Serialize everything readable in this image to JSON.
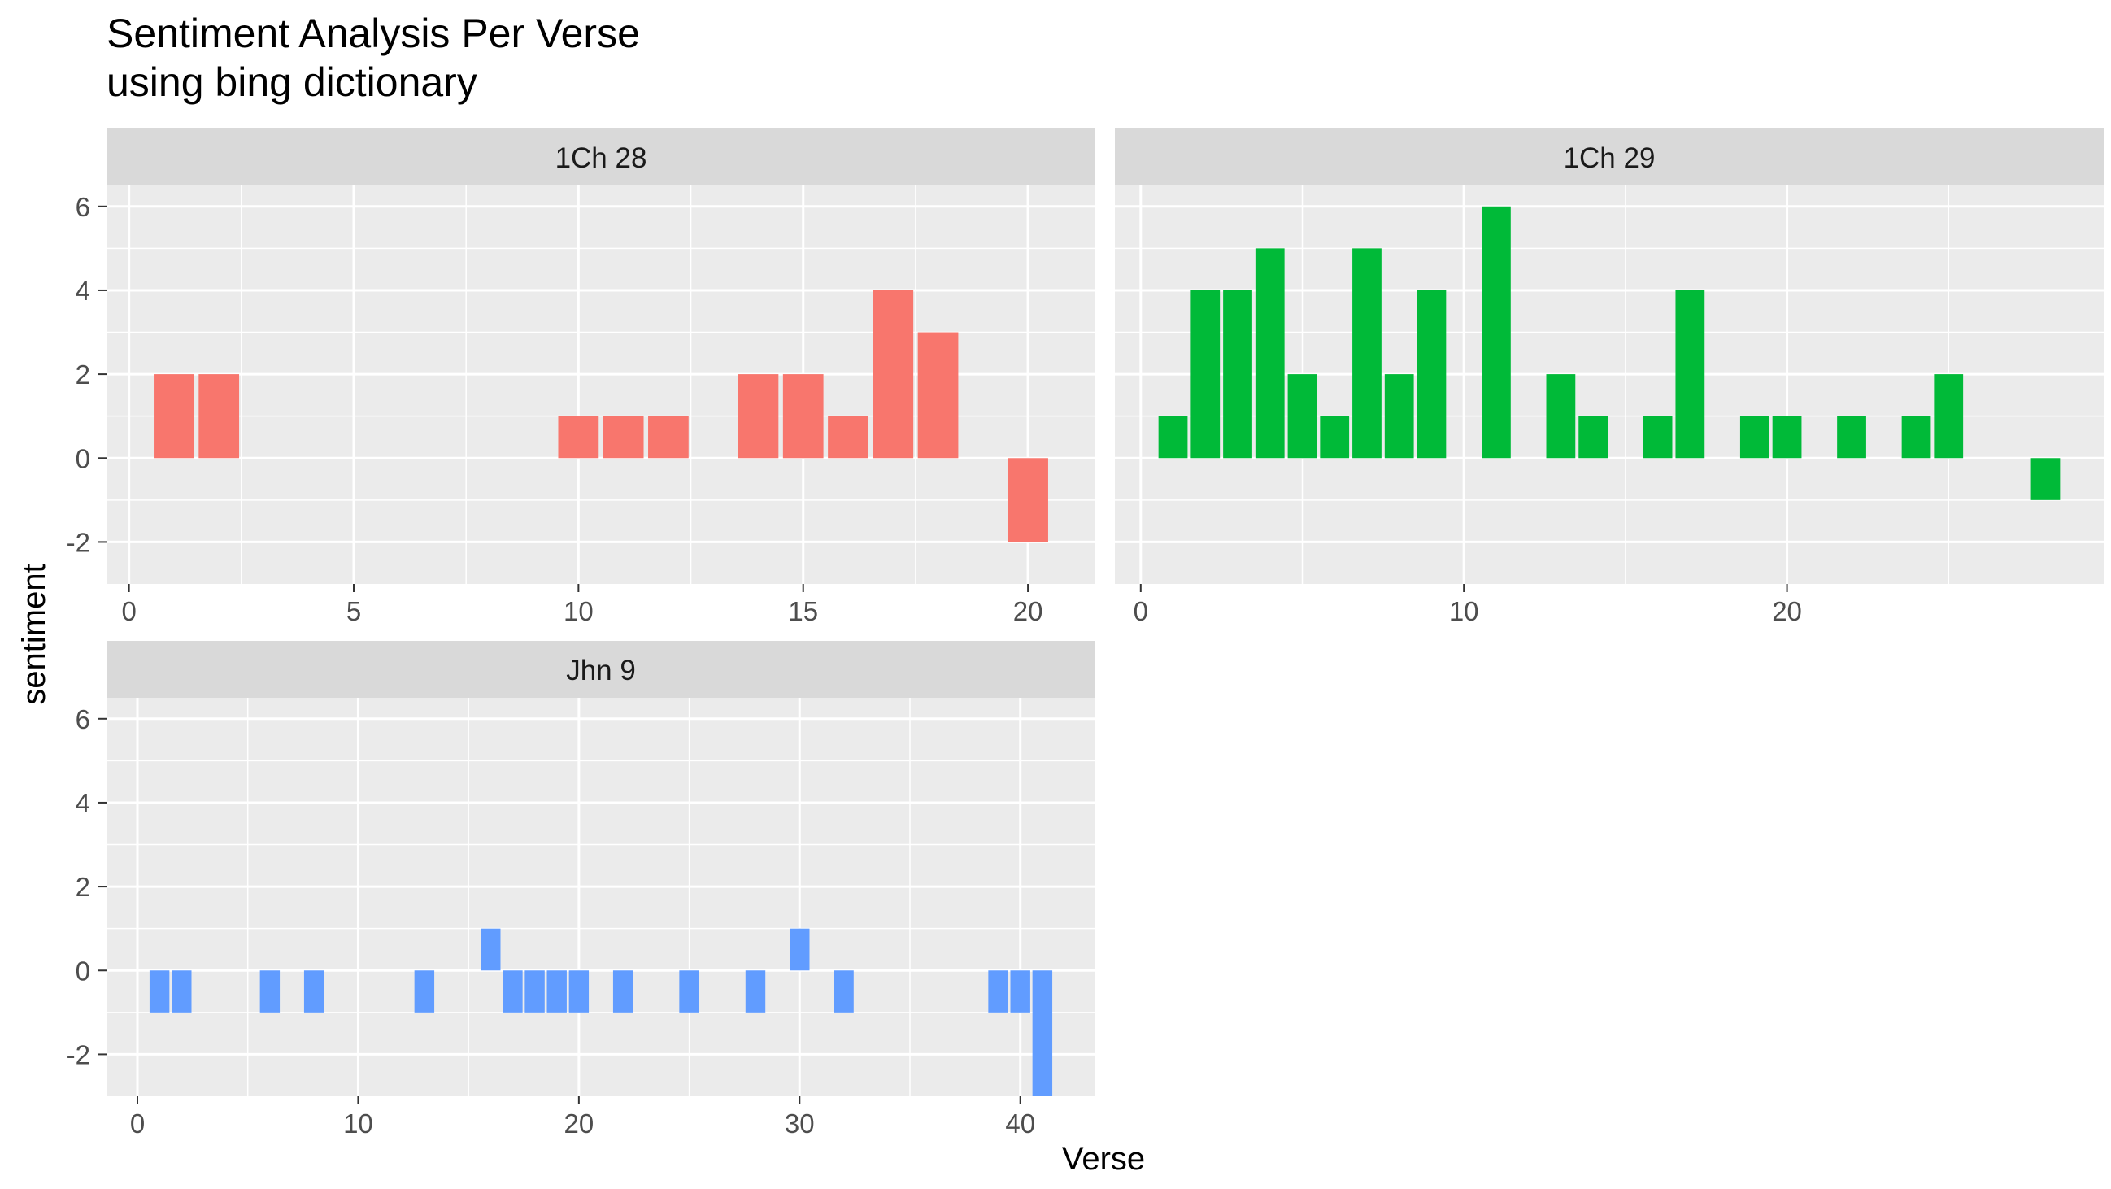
{
  "chart_data": {
    "type": "bar",
    "title": "Sentiment Analysis Per Verse",
    "subtitle": "using bing dictionary",
    "xlabel": "Verse",
    "ylabel": "sentiment",
    "ylim": [
      -3,
      6.5
    ],
    "y_ticks": [
      -2,
      0,
      2,
      4,
      6
    ],
    "grid": true,
    "legend": "none",
    "facets": [
      {
        "name": "1Ch 28",
        "color": "#F8766D",
        "xlim": [
          -0.5,
          21.5
        ],
        "x_ticks": [
          0,
          5,
          10,
          15,
          20
        ],
        "x": [
          1,
          2,
          10,
          11,
          12,
          14,
          15,
          16,
          17,
          18,
          20
        ],
        "values": [
          2,
          2,
          1,
          1,
          1,
          2,
          2,
          1,
          4,
          3,
          -2
        ]
      },
      {
        "name": "1Ch 29",
        "color": "#00BA38",
        "xlim": [
          -0.8,
          29.8
        ],
        "x_ticks": [
          0,
          10,
          20
        ],
        "x": [
          1,
          2,
          3,
          4,
          5,
          6,
          7,
          8,
          9,
          11,
          13,
          14,
          16,
          17,
          19,
          20,
          22,
          24,
          25,
          28
        ],
        "values": [
          1,
          4,
          4,
          5,
          2,
          1,
          5,
          2,
          4,
          6,
          2,
          1,
          1,
          4,
          1,
          1,
          1,
          1,
          2,
          -1
        ]
      },
      {
        "name": "Jhn 9",
        "color": "#619CFF",
        "xlim": [
          -1.4,
          43.4
        ],
        "x_ticks": [
          0,
          10,
          20,
          30,
          40
        ],
        "x": [
          1,
          2,
          6,
          8,
          13,
          16,
          17,
          18,
          19,
          20,
          22,
          25,
          28,
          30,
          32,
          39,
          40,
          41
        ],
        "values": [
          -1,
          -1,
          -1,
          -1,
          -1,
          1,
          -1,
          -1,
          -1,
          -1,
          -1,
          -1,
          -1,
          1,
          -1,
          -1,
          -1,
          -3
        ]
      }
    ]
  }
}
